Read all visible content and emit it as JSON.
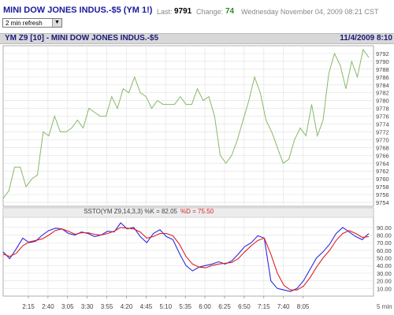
{
  "header": {
    "symbol": "MINI DOW JONES INDUS.-$5 (YM 1!)",
    "last_label": "Last:",
    "last_value": "9791",
    "change_label": "Change:",
    "change_value": "74",
    "datetime": "Wednesday November 04, 2009 08:21 CST"
  },
  "refresh": {
    "selected": "2 min refresh"
  },
  "chart_header": {
    "left": "YM Z9 [10] - MINI DOW JONES INDUS.-$5",
    "right": "11/4/2009 8:10"
  },
  "colors": {
    "price": "#88b86a",
    "k": "#2a2ae0",
    "d": "#e02020",
    "d_label": "#e02020",
    "title": "#1a1a9a"
  },
  "chart_data": [
    {
      "type": "line",
      "series": [
        {
          "name": "",
          "values": [
            9755,
            9757,
            9763,
            9763,
            9758,
            9760,
            9761,
            9772,
            9771,
            9776,
            9772,
            9772,
            9773,
            9775,
            9773,
            9778,
            9777,
            9776,
            9776,
            9781,
            9778,
            9783,
            9782,
            9786,
            9782,
            9781,
            9778,
            9780,
            9779,
            9779,
            9779,
            9781,
            9779,
            9779,
            9783,
            9780,
            9781,
            9776,
            9766,
            9764,
            9766,
            9770,
            9775,
            9780,
            9786,
            9782,
            9775,
            9772,
            9768,
            9764,
            9765,
            9770,
            9773,
            9771,
            9779,
            9771,
            9775,
            9787,
            9792,
            9789,
            9783,
            9790,
            9786,
            9793,
            9791
          ]
        }
      ],
      "x_tick_labels": [
        "2:15",
        "2:40",
        "3:05",
        "3:30",
        "3:55",
        "4:20",
        "4:45",
        "5:10",
        "5:35",
        "6:00",
        "6:25",
        "6:50",
        "7:15",
        "7:40",
        "8:05"
      ],
      "x_unit_label": "5 min",
      "ylim": [
        9753,
        9794
      ],
      "y_ticks": [
        9754,
        9756,
        9758,
        9760,
        9762,
        9764,
        9766,
        9768,
        9770,
        9772,
        9774,
        9776,
        9778,
        9780,
        9782,
        9784,
        9786,
        9788,
        9790,
        9792
      ],
      "grid": true
    },
    {
      "type": "line",
      "title_prefix": "SSTO(YM Z9,14,3,3) %K = 82.05",
      "title_suffix": "%D = 75.50",
      "series": [
        {
          "name": "%K",
          "values": [
            58,
            49,
            62,
            76,
            70,
            72,
            80,
            86,
            89,
            88,
            82,
            80,
            84,
            82,
            78,
            80,
            85,
            84,
            96,
            88,
            90,
            78,
            70,
            82,
            87,
            78,
            74,
            56,
            40,
            33,
            38,
            40,
            42,
            45,
            42,
            46,
            55,
            65,
            70,
            79,
            76,
            20,
            10,
            8,
            6,
            10,
            20,
            35,
            50,
            58,
            68,
            82,
            90,
            84,
            78,
            74,
            82
          ]
        },
        {
          "name": "%D",
          "values": [
            55,
            52,
            56,
            66,
            71,
            73,
            75,
            80,
            86,
            88,
            85,
            81,
            83,
            83,
            81,
            80,
            82,
            85,
            90,
            89,
            88,
            84,
            76,
            78,
            82,
            82,
            79,
            68,
            52,
            42,
            38,
            37,
            40,
            42,
            43,
            44,
            49,
            58,
            66,
            73,
            76,
            55,
            30,
            14,
            8,
            8,
            13,
            24,
            38,
            50,
            60,
            73,
            82,
            86,
            82,
            77,
            78
          ]
        }
      ],
      "ylim": [
        0,
        100
      ],
      "y_ticks": [
        10,
        20,
        30,
        40,
        50,
        60,
        70,
        80,
        90
      ],
      "grid": true
    }
  ]
}
